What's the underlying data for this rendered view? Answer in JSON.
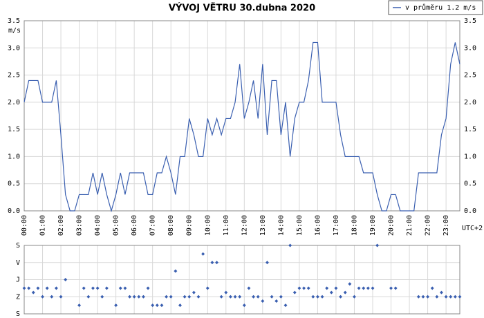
{
  "chart_data": [
    {
      "type": "line",
      "title": "VÝVOJ VĚTRU  30.dubna 2020",
      "y_label": "m/s",
      "x_label": "UTC+2",
      "legend_position": "top-right",
      "grid": true,
      "xlim": [
        0,
        23.75
      ],
      "ylim": [
        0,
        3.5
      ],
      "yticks": [
        {
          "value": 0,
          "label": "0.0"
        },
        0.5,
        {
          "value": 1,
          "label": "1.0"
        },
        1.5,
        {
          "value": 2,
          "label": "2.0"
        },
        2.5,
        {
          "value": 3,
          "label": "3.0"
        },
        3.5
      ],
      "xticks": [
        {
          "value": 0,
          "label": "00:00"
        },
        {
          "value": 1,
          "label": "01:00"
        },
        {
          "value": 2,
          "label": "02:00"
        },
        {
          "value": 3,
          "label": "03:00"
        },
        {
          "value": 4,
          "label": "04:00"
        },
        {
          "value": 5,
          "label": "05:00"
        },
        {
          "value": 6,
          "label": "06:00"
        },
        {
          "value": 7,
          "label": "07:00"
        },
        {
          "value": 8,
          "label": "08:00"
        },
        {
          "value": 9,
          "label": "09:00"
        },
        {
          "value": 10,
          "label": "10:00"
        },
        {
          "value": 11,
          "label": "11:00"
        },
        {
          "value": 12,
          "label": "12:00"
        },
        {
          "value": 13,
          "label": "13:00"
        },
        {
          "value": 14,
          "label": "14:00"
        },
        {
          "value": 15,
          "label": "15:00"
        },
        {
          "value": 16,
          "label": "16:00"
        },
        {
          "value": 17,
          "label": "17:00"
        },
        {
          "value": 18,
          "label": "18:00"
        },
        {
          "value": 19,
          "label": "19:00"
        },
        {
          "value": 20,
          "label": "20:00"
        },
        {
          "value": 21,
          "label": "21:00"
        },
        {
          "value": 22,
          "label": "22:00"
        },
        {
          "value": 23,
          "label": "23:00"
        }
      ],
      "x": [
        0,
        0.25,
        0.5,
        0.75,
        1,
        1.25,
        1.5,
        1.75,
        2,
        2.25,
        2.5,
        2.75,
        3,
        3.25,
        3.5,
        3.75,
        4,
        4.25,
        4.5,
        4.75,
        5,
        5.25,
        5.5,
        5.75,
        6,
        6.25,
        6.5,
        6.75,
        7,
        7.25,
        7.5,
        7.75,
        8,
        8.25,
        8.5,
        8.75,
        9,
        9.25,
        9.5,
        9.75,
        10,
        10.25,
        10.5,
        10.75,
        11,
        11.25,
        11.5,
        11.75,
        12,
        12.25,
        12.5,
        12.75,
        13,
        13.25,
        13.5,
        13.75,
        14,
        14.25,
        14.5,
        14.75,
        15,
        15.25,
        15.5,
        15.75,
        16,
        16.25,
        16.5,
        16.75,
        17,
        17.25,
        17.5,
        17.75,
        18,
        18.25,
        18.5,
        18.75,
        19,
        19.25,
        19.5,
        19.75,
        20,
        20.25,
        20.5,
        20.75,
        21,
        21.25,
        21.5,
        21.75,
        22,
        22.25,
        22.5,
        22.75,
        23,
        23.25,
        23.5,
        23.75
      ],
      "series": [
        {
          "name": "v průměru 1.2 m/s",
          "color": "#3a5fb0",
          "values": [
            2.0,
            2.4,
            2.4,
            2.4,
            2.0,
            2.0,
            2.0,
            2.4,
            1.4,
            0.3,
            0.0,
            0.0,
            0.3,
            0.3,
            0.3,
            0.7,
            0.3,
            0.7,
            0.3,
            0.0,
            0.3,
            0.7,
            0.3,
            0.7,
            0.7,
            0.7,
            0.7,
            0.3,
            0.3,
            0.7,
            0.7,
            1.0,
            0.7,
            0.3,
            1.0,
            1.0,
            1.7,
            1.4,
            1.0,
            1.0,
            1.7,
            1.4,
            1.7,
            1.4,
            1.7,
            1.7,
            2.0,
            2.7,
            1.7,
            2.0,
            2.4,
            1.7,
            2.7,
            1.4,
            2.4,
            2.4,
            1.4,
            2.0,
            1.0,
            1.7,
            2.0,
            2.0,
            2.4,
            3.1,
            3.1,
            2.0,
            2.0,
            2.0,
            2.0,
            1.4,
            1.0,
            1.0,
            1.0,
            1.0,
            0.7,
            0.7,
            0.7,
            0.3,
            0.0,
            0.0,
            0.3,
            0.3,
            0.0,
            0.0,
            0.0,
            0.0,
            0.7,
            0.7,
            0.7,
            0.7,
            0.7,
            1.4,
            1.7,
            2.7,
            3.1,
            2.7
          ]
        }
      ]
    },
    {
      "type": "scatter",
      "grid": true,
      "color": "#3a5fb0",
      "xlim": [
        0,
        23.75
      ],
      "ylim": [
        0,
        360
      ],
      "yticks": [
        {
          "value": 0,
          "label": "S"
        },
        {
          "value": 90,
          "label": "Z"
        },
        {
          "value": 180,
          "label": "J"
        },
        {
          "value": 270,
          "label": "V"
        },
        {
          "value": 360,
          "label": "S"
        }
      ],
      "x": [
        0,
        0.25,
        0.5,
        0.75,
        1,
        1.25,
        1.5,
        1.75,
        2,
        2.25,
        3,
        3.25,
        3.5,
        3.75,
        4,
        4.25,
        4.5,
        5,
        5.25,
        5.5,
        5.75,
        6,
        6.25,
        6.5,
        6.75,
        7,
        7.25,
        7.5,
        7.75,
        8,
        8.25,
        8.5,
        8.75,
        9,
        9.25,
        9.5,
        9.75,
        10,
        10.25,
        10.5,
        10.75,
        11,
        11.25,
        11.5,
        11.75,
        12,
        12.25,
        12.5,
        12.75,
        13,
        13.25,
        13.5,
        13.75,
        14,
        14.25,
        14.5,
        14.75,
        15,
        15.25,
        15.5,
        15.75,
        16,
        16.25,
        16.5,
        16.75,
        17,
        17.25,
        17.5,
        17.75,
        18,
        18.25,
        18.5,
        18.75,
        19,
        19.25,
        20,
        20.25,
        21.5,
        21.75,
        22,
        22.25,
        22.5,
        22.75,
        23,
        23.25,
        23.5,
        23.75
      ],
      "values": [
        135,
        135,
        112.5,
        135,
        90,
        135,
        90,
        135,
        90,
        180,
        45,
        135,
        90,
        135,
        135,
        90,
        135,
        45,
        135,
        135,
        90,
        90,
        90,
        90,
        135,
        45,
        45,
        45,
        90,
        90,
        225,
        45,
        90,
        90,
        112.5,
        90,
        315,
        135,
        270,
        270,
        90,
        112.5,
        90,
        90,
        90,
        45,
        135,
        90,
        90,
        67.5,
        270,
        90,
        67.5,
        90,
        45,
        360,
        112.5,
        135,
        135,
        135,
        90,
        90,
        90,
        135,
        112.5,
        135,
        90,
        112.5,
        157.5,
        90,
        135,
        135,
        135,
        135,
        360,
        135,
        135,
        90,
        90,
        90,
        135,
        90,
        112.5,
        90,
        90,
        90,
        90
      ]
    }
  ]
}
